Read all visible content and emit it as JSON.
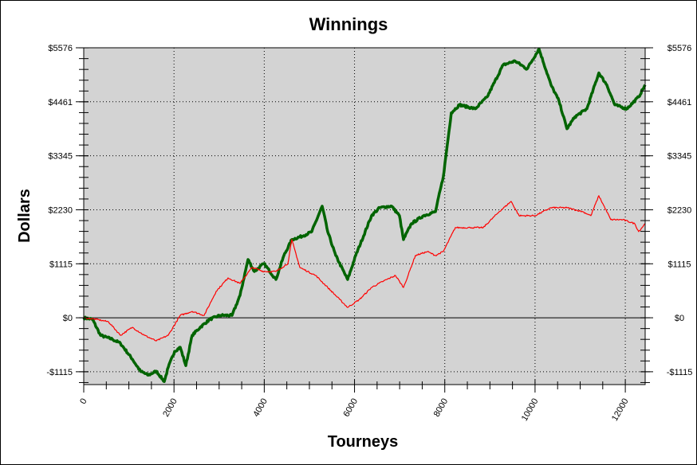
{
  "chart_data": {
    "type": "line",
    "title": "Winnings",
    "xlabel": "Tourneys",
    "ylabel": "Dollars",
    "xlim": [
      0,
      12440
    ],
    "ylim": [
      -1380,
      5576
    ],
    "x_ticks": [
      0,
      2000,
      4000,
      6000,
      8000,
      10000,
      12000
    ],
    "x_tick_labels": [
      "0",
      "2000",
      "4000",
      "6000",
      "8000",
      "10000",
      "12000"
    ],
    "y_ticks": [
      -1115,
      0,
      1115,
      2230,
      3345,
      4461,
      5576
    ],
    "y_tick_labels": [
      "-$1115",
      "$0",
      "$1115",
      "$2230",
      "$3345",
      "$4461",
      "$5576"
    ],
    "grid": "dotted",
    "background": "#d3d3d3",
    "y_axis_mirrored_right": true,
    "series": [
      {
        "color": "#006400",
        "values": [
          [
            0,
            0
          ],
          [
            194,
            -33
          ],
          [
            371,
            -362
          ],
          [
            636,
            -445
          ],
          [
            813,
            -527
          ],
          [
            1078,
            -856
          ],
          [
            1254,
            -1103
          ],
          [
            1431,
            -1186
          ],
          [
            1608,
            -1103
          ],
          [
            1784,
            -1317
          ],
          [
            1873,
            -1021
          ],
          [
            2014,
            -692
          ],
          [
            2138,
            -609
          ],
          [
            2261,
            -988
          ],
          [
            2403,
            -362
          ],
          [
            2580,
            -198
          ],
          [
            2792,
            -33
          ],
          [
            3021,
            49
          ],
          [
            3286,
            49
          ],
          [
            3463,
            461
          ],
          [
            3640,
            1203
          ],
          [
            3781,
            955
          ],
          [
            3993,
            1120
          ],
          [
            4258,
            790
          ],
          [
            4435,
            1285
          ],
          [
            4611,
            1614
          ],
          [
            4876,
            1697
          ],
          [
            5053,
            1779
          ],
          [
            5283,
            2306
          ],
          [
            5406,
            1779
          ],
          [
            5583,
            1285
          ],
          [
            5848,
            790
          ],
          [
            6025,
            1285
          ],
          [
            6378,
            2108
          ],
          [
            6555,
            2273
          ],
          [
            6820,
            2306
          ],
          [
            6996,
            2108
          ],
          [
            7085,
            1614
          ],
          [
            7261,
            1944
          ],
          [
            7527,
            2108
          ],
          [
            7792,
            2190
          ],
          [
            7968,
            2915
          ],
          [
            8145,
            4232
          ],
          [
            8322,
            4397
          ],
          [
            8675,
            4315
          ],
          [
            8940,
            4562
          ],
          [
            9293,
            5221
          ],
          [
            9558,
            5303
          ],
          [
            9823,
            5139
          ],
          [
            10088,
            5551
          ],
          [
            10353,
            4809
          ],
          [
            10530,
            4479
          ],
          [
            10707,
            3903
          ],
          [
            10883,
            4150
          ],
          [
            11148,
            4315
          ],
          [
            11413,
            5056
          ],
          [
            11590,
            4809
          ],
          [
            11767,
            4397
          ],
          [
            12032,
            4315
          ],
          [
            12297,
            4562
          ],
          [
            12438,
            4809
          ]
        ]
      },
      {
        "color": "#ff0000",
        "values": [
          [
            0,
            0
          ],
          [
            283,
            -33
          ],
          [
            548,
            -82
          ],
          [
            813,
            -362
          ],
          [
            1078,
            -198
          ],
          [
            1343,
            -362
          ],
          [
            1608,
            -478
          ],
          [
            1873,
            -362
          ],
          [
            2138,
            49
          ],
          [
            2403,
            132
          ],
          [
            2668,
            49
          ],
          [
            2933,
            544
          ],
          [
            3198,
            824
          ],
          [
            3463,
            708
          ],
          [
            3728,
            1038
          ],
          [
            3993,
            955
          ],
          [
            4258,
            955
          ],
          [
            4523,
            1120
          ],
          [
            4611,
            1614
          ],
          [
            4788,
            1038
          ],
          [
            5141,
            873
          ],
          [
            5406,
            626
          ],
          [
            5671,
            379
          ],
          [
            5848,
            214
          ],
          [
            6113,
            379
          ],
          [
            6378,
            626
          ],
          [
            6643,
            758
          ],
          [
            6908,
            873
          ],
          [
            7085,
            626
          ],
          [
            7350,
            1285
          ],
          [
            7615,
            1367
          ],
          [
            7792,
            1285
          ],
          [
            7968,
            1367
          ],
          [
            8233,
            1861
          ],
          [
            8587,
            1861
          ],
          [
            8852,
            1861
          ],
          [
            9205,
            2190
          ],
          [
            9470,
            2404
          ],
          [
            9647,
            2108
          ],
          [
            10000,
            2108
          ],
          [
            10353,
            2273
          ],
          [
            10707,
            2273
          ],
          [
            11060,
            2190
          ],
          [
            11237,
            2108
          ],
          [
            11413,
            2520
          ],
          [
            11678,
            2026
          ],
          [
            11943,
            2026
          ],
          [
            12208,
            1944
          ],
          [
            12297,
            1779
          ],
          [
            12438,
            1944
          ]
        ]
      }
    ]
  }
}
